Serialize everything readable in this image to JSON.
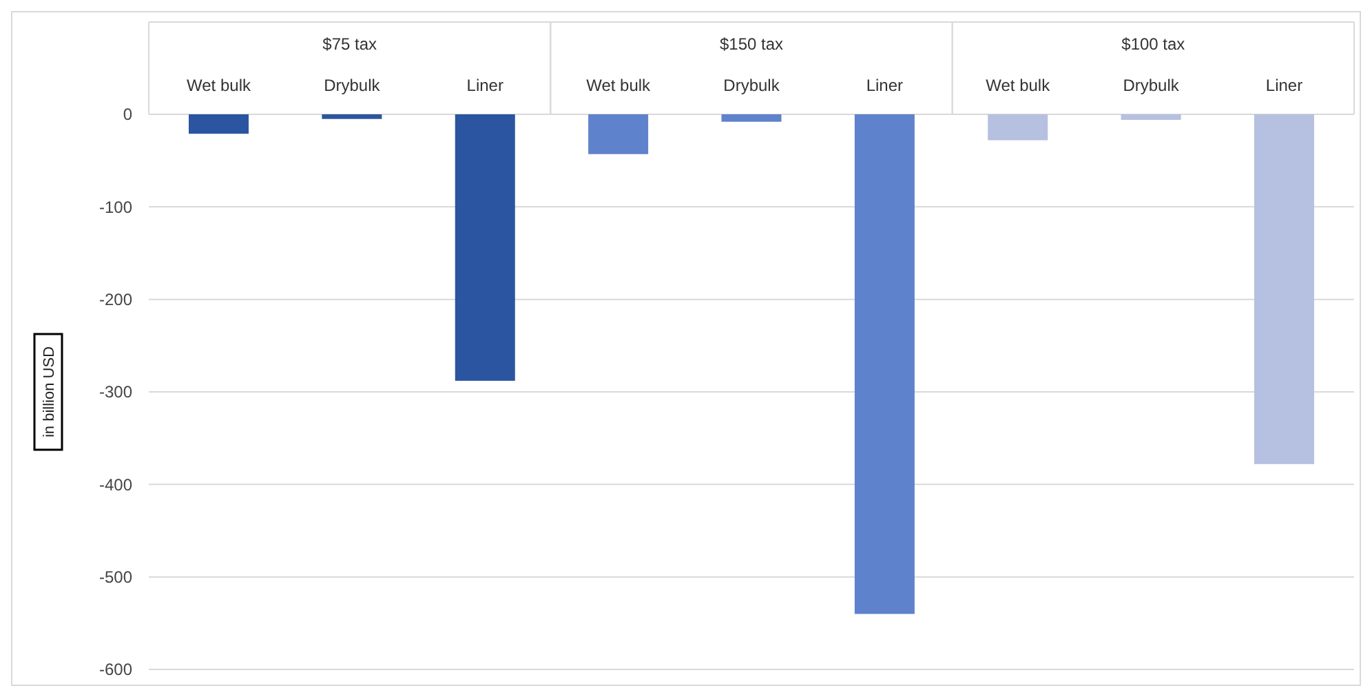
{
  "chart_data": {
    "type": "bar",
    "ylabel": "in billion USD",
    "categories": [
      "Wet bulk",
      "Drybulk",
      "Liner",
      "Wet bulk",
      "Drybulk",
      "Liner",
      "Wet bulk",
      "Drybulk",
      "Liner"
    ],
    "values": [
      -21,
      -5,
      -288,
      -43,
      -8,
      -540,
      -28,
      -6,
      -378
    ],
    "colors": [
      "#2b55a0",
      "#2b55a0",
      "#2b55a0",
      "#5f82cc",
      "#5f82cc",
      "#5f82cc",
      "#b6c0e0",
      "#b6c0e0",
      "#b6c0e0"
    ],
    "annotations": [
      "$75 tax",
      "$150 tax",
      "$100 tax"
    ],
    "ylim": [
      -600,
      0
    ],
    "yticks": [
      -600,
      -500,
      -400,
      -300,
      -200,
      -100,
      0
    ],
    "grid": "y"
  }
}
